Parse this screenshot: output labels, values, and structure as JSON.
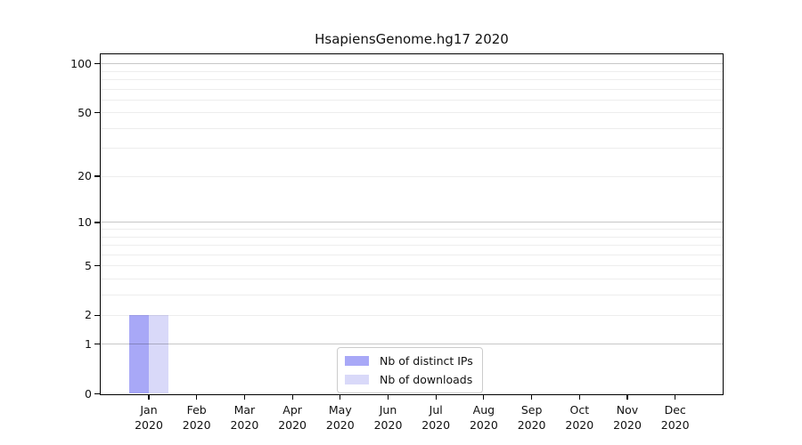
{
  "chart_data": {
    "type": "bar",
    "title": "HsapiensGenome.hg17 2020",
    "x_months": [
      "Jan",
      "Feb",
      "Mar",
      "Apr",
      "May",
      "Jun",
      "Jul",
      "Aug",
      "Sep",
      "Oct",
      "Nov",
      "Dec"
    ],
    "x_year": "2020",
    "series": [
      {
        "name": "Nb of distinct IPs",
        "color": "#a8a8f7",
        "values": [
          2,
          0,
          0,
          0,
          0,
          0,
          0,
          0,
          0,
          0,
          0,
          0
        ]
      },
      {
        "name": "Nb of downloads",
        "color": "#d9d9f9",
        "values": [
          2,
          0,
          0,
          0,
          0,
          0,
          0,
          0,
          0,
          0,
          0,
          0
        ]
      }
    ],
    "yscale": "log1p",
    "ylim": [
      0,
      115
    ],
    "yticks": [
      0,
      1,
      2,
      5,
      10,
      20,
      50,
      100
    ],
    "gridlines_major": [
      1,
      10,
      100
    ],
    "gridlines_minor": [
      2,
      3,
      4,
      5,
      6,
      7,
      8,
      9,
      20,
      30,
      40,
      50,
      60,
      70,
      80,
      90
    ],
    "grid": true,
    "legend_position": "lower center"
  },
  "legend": {
    "items": [
      {
        "label": "Nb of distinct IPs",
        "color": "#a8a8f7"
      },
      {
        "label": "Nb of downloads",
        "color": "#d9d9f9"
      }
    ]
  },
  "colors": {
    "background": "#ffffff",
    "axis": "#000000",
    "grid_major": "#c6c6c6",
    "grid_minor": "#ededed",
    "text": "#111111"
  }
}
